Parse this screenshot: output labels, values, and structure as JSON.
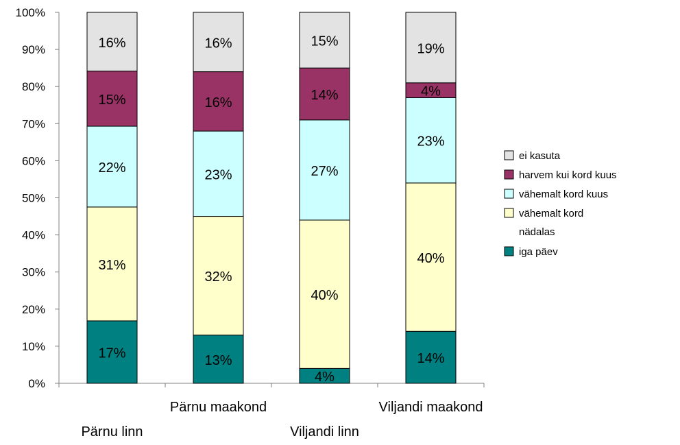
{
  "chart_data": {
    "type": "bar",
    "stacked": true,
    "normalized": true,
    "categories": [
      "Pärnu linn",
      "Pärnu maakond",
      "Viljandi linn",
      "Viljandi maakond"
    ],
    "ylim": [
      0,
      100
    ],
    "yticks": [
      "0%",
      "10%",
      "20%",
      "30%",
      "40%",
      "50%",
      "60%",
      "70%",
      "80%",
      "90%",
      "100%"
    ],
    "grid": false,
    "legend_position": "right",
    "series": [
      {
        "name": "iga päev",
        "color": "#008080",
        "values": [
          17,
          13,
          4,
          14
        ],
        "labels": [
          "17%",
          "13%",
          "4%",
          "14%"
        ]
      },
      {
        "name": "vähemalt kord nädalas",
        "color": "#FFFFCC",
        "values": [
          31,
          32,
          40,
          40
        ],
        "labels": [
          "31%",
          "32%",
          "40%",
          "40%"
        ]
      },
      {
        "name": "vähemalt kord kuus",
        "color": "#CCFFFF",
        "values": [
          22,
          23,
          27,
          23
        ],
        "labels": [
          "22%",
          "23%",
          "27%",
          "23%"
        ]
      },
      {
        "name": "harvem kui kord kuus",
        "color": "#993366",
        "values": [
          15,
          16,
          14,
          4
        ],
        "labels": [
          "15%",
          "16%",
          "14%",
          "4%"
        ]
      },
      {
        "name": "ei kasuta",
        "color": "#E3E3E3",
        "values": [
          16,
          16,
          15,
          19
        ],
        "labels": [
          "16%",
          "16%",
          "15%",
          "19%"
        ]
      }
    ],
    "legend_order": [
      "ei kasuta",
      "harvem kui kord kuus",
      "vähemalt kord kuus",
      "vähemalt kord nädalas",
      "iga päev"
    ]
  }
}
